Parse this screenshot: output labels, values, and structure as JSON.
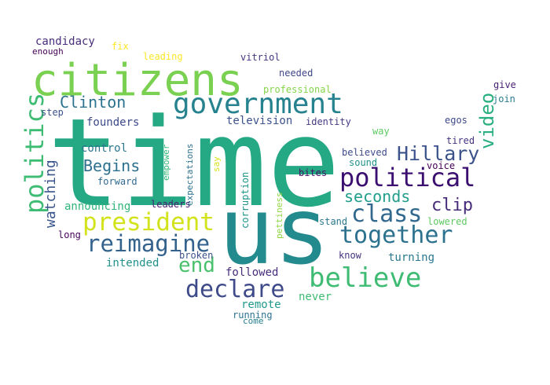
{
  "words": [
    {
      "text": "time",
      "color": "#25a884",
      "rotated": false
    },
    {
      "text": "us",
      "color": "#238a8d",
      "rotated": false
    },
    {
      "text": "citizens",
      "color": "#7ad151",
      "rotated": false
    },
    {
      "text": "government",
      "color": "#26828e",
      "rotated": false
    },
    {
      "text": "politics",
      "color": "#3fbc73",
      "rotated": true
    },
    {
      "text": "political",
      "color": "#3b0f70",
      "rotated": false
    },
    {
      "text": "president",
      "color": "#d2e21b",
      "rotated": false
    },
    {
      "text": "believe",
      "color": "#3fbc73",
      "rotated": false
    },
    {
      "text": "together",
      "color": "#2c728e",
      "rotated": false
    },
    {
      "text": "reimagine",
      "color": "#33638d",
      "rotated": false
    },
    {
      "text": "declare",
      "color": "#3e4a89",
      "rotated": false
    },
    {
      "text": "class",
      "color": "#31688e",
      "rotated": false
    },
    {
      "text": "end",
      "color": "#4ac16d",
      "rotated": false
    },
    {
      "text": "Hillary",
      "color": "#3b528b",
      "rotated": false
    },
    {
      "text": "video",
      "color": "#29af7f",
      "rotated": true
    },
    {
      "text": "Clinton",
      "color": "#2c728e",
      "rotated": false
    },
    {
      "text": "Begins",
      "color": "#2d708e",
      "rotated": false
    },
    {
      "text": "seconds",
      "color": "#1f9e89",
      "rotated": false
    },
    {
      "text": "clip",
      "color": "#472c7a",
      "rotated": false
    },
    {
      "text": "watching",
      "color": "#39558c",
      "rotated": true
    },
    {
      "text": "founders",
      "color": "#3e4a89",
      "rotated": false
    },
    {
      "text": "control",
      "color": "#2a768e",
      "rotated": false
    },
    {
      "text": "television",
      "color": "#3b528b",
      "rotated": false
    },
    {
      "text": "announcing",
      "color": "#31b57b",
      "rotated": false
    },
    {
      "text": "intended",
      "color": "#21918c",
      "rotated": false
    },
    {
      "text": "turning",
      "color": "#2a788e",
      "rotated": false
    },
    {
      "text": "followed",
      "color": "#472d7b",
      "rotated": false
    },
    {
      "text": "remote",
      "color": "#1f9a8a",
      "rotated": false
    },
    {
      "text": "never",
      "color": "#3dbc74",
      "rotated": false
    },
    {
      "text": "candidacy",
      "color": "#472d7b",
      "rotated": false
    },
    {
      "text": "enough",
      "color": "#440154",
      "rotated": false
    },
    {
      "text": "fix",
      "color": "#fde725",
      "rotated": false
    },
    {
      "text": "leading",
      "color": "#fde725",
      "rotated": false
    },
    {
      "text": "vitriol",
      "color": "#46337f",
      "rotated": false
    },
    {
      "text": "needed",
      "color": "#404688",
      "rotated": false
    },
    {
      "text": "professional",
      "color": "#84d44b",
      "rotated": false
    },
    {
      "text": "step",
      "color": "#3b528b",
      "rotated": false
    },
    {
      "text": "identity",
      "color": "#443a83",
      "rotated": false
    },
    {
      "text": "way",
      "color": "#5ec962",
      "rotated": false
    },
    {
      "text": "egos",
      "color": "#3e4989",
      "rotated": false
    },
    {
      "text": "give",
      "color": "#482173",
      "rotated": false
    },
    {
      "text": "join",
      "color": "#287d8e",
      "rotated": false
    },
    {
      "text": "tired",
      "color": "#46337f",
      "rotated": false
    },
    {
      "text": "voice",
      "color": "#440154",
      "rotated": false
    },
    {
      "text": "believed",
      "color": "#3e4989",
      "rotated": false
    },
    {
      "text": "sound",
      "color": "#21918c",
      "rotated": false
    },
    {
      "text": "bites",
      "color": "#471063",
      "rotated": false
    },
    {
      "text": "expectations",
      "color": "#2c718e",
      "rotated": true
    },
    {
      "text": "empower",
      "color": "#35b779",
      "rotated": true
    },
    {
      "text": "say",
      "color": "#d8e219",
      "rotated": true
    },
    {
      "text": "forward",
      "color": "#31688e",
      "rotated": false
    },
    {
      "text": "leaders",
      "color": "#481f70",
      "rotated": false
    },
    {
      "text": "corruption",
      "color": "#1f958b",
      "rotated": true
    },
    {
      "text": "pettiness",
      "color": "#8fd744",
      "rotated": true
    },
    {
      "text": "stand",
      "color": "#2a788e",
      "rotated": false
    },
    {
      "text": "lowered",
      "color": "#5ec962",
      "rotated": false
    },
    {
      "text": "long",
      "color": "#450559",
      "rotated": false
    },
    {
      "text": "broken",
      "color": "#3b528b",
      "rotated": false
    },
    {
      "text": "know",
      "color": "#46327e",
      "rotated": false
    },
    {
      "text": "running",
      "color": "#2c728e",
      "rotated": false
    },
    {
      "text": "come",
      "color": "#277f8e",
      "rotated": false
    }
  ]
}
